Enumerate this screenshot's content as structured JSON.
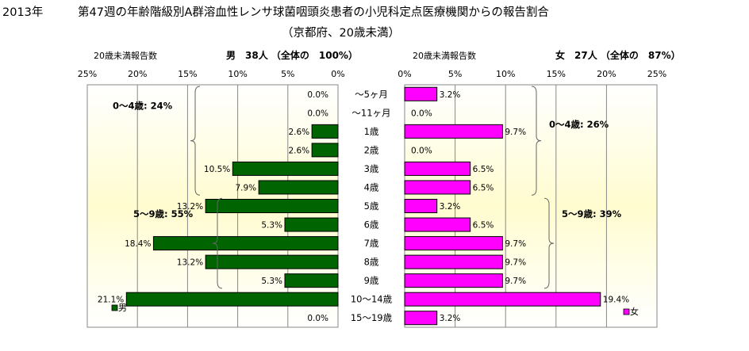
{
  "title": {
    "line1_year": "2013年",
    "line1_main": "第47週の年齢階級別A群溶血性レンサ球菌咽頭炎患者の小児科定点医療機関からの報告割合",
    "line2": "（京都府、20歳未満）"
  },
  "chart_data": {
    "type": "bar",
    "categories": [
      "～5ヶ月",
      "～11ヶ月",
      "1歳",
      "2歳",
      "3歳",
      "4歳",
      "5歳",
      "6歳",
      "7歳",
      "8歳",
      "9歳",
      "10～14歳",
      "15～19歳"
    ],
    "x_ticks": [
      "25%",
      "20%",
      "15%",
      "10%",
      "5%",
      "0%"
    ],
    "xlim": [
      0,
      25
    ],
    "left_panel": {
      "header": "20歳未満報告数",
      "summary": "男　38人 （全体の　100%）",
      "legend_label": "男",
      "color": "#006400",
      "values": [
        0.0,
        0.0,
        2.6,
        2.6,
        10.5,
        7.9,
        13.2,
        5.3,
        18.4,
        13.2,
        5.3,
        21.1,
        0.0
      ],
      "labels": [
        "0.0%",
        "0.0%",
        "2.6%",
        "2.6%",
        "10.5%",
        "7.9%",
        "13.2%",
        "5.3%",
        "18.4%",
        "13.2%",
        "5.3%",
        "21.1%",
        "0.0%"
      ],
      "groups": [
        {
          "label": "0～4歳:  24%",
          "from": 0,
          "to": 5
        },
        {
          "label": "5～9歳:  55%",
          "from": 6,
          "to": 10
        }
      ]
    },
    "right_panel": {
      "header": "20歳未満報告数",
      "summary": "女　27人 （全体の　87%）",
      "legend_label": "女",
      "color": "#ff00ff",
      "x_ticks": [
        "0%",
        "5%",
        "10%",
        "15%",
        "20%",
        "25%"
      ],
      "values": [
        3.2,
        0.0,
        9.7,
        0.0,
        6.5,
        6.5,
        3.2,
        6.5,
        9.7,
        9.7,
        9.7,
        19.4,
        3.2
      ],
      "labels": [
        "3.2%",
        "0.0%",
        "9.7%",
        "0.0%",
        "6.5%",
        "6.5%",
        "3.2%",
        "6.5%",
        "9.7%",
        "9.7%",
        "9.7%",
        "19.4%",
        "3.2%"
      ],
      "groups": [
        {
          "label": "0～4歳:  26%",
          "from": 0,
          "to": 5
        },
        {
          "label": "5～9歳:  39%",
          "from": 6,
          "to": 10
        }
      ]
    }
  }
}
